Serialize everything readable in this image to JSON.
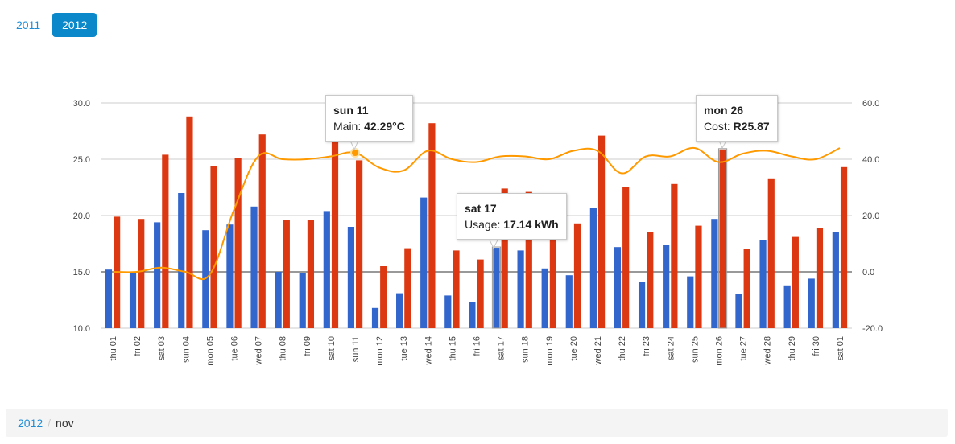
{
  "years": {
    "items": [
      {
        "label": "2011",
        "active": false
      },
      {
        "label": "2012",
        "active": true
      }
    ]
  },
  "breadcrumb": {
    "year": "2012",
    "separator": "/",
    "current": "nov"
  },
  "chart_data": {
    "type": "bar",
    "categories": [
      "thu 01",
      "fri 02",
      "sat 03",
      "sun 04",
      "mon 05",
      "tue 06",
      "wed 07",
      "thu 08",
      "fri 09",
      "sat 10",
      "sun 11",
      "mon 12",
      "tue 13",
      "wed 14",
      "thu 15",
      "fri 16",
      "sat 17",
      "sun 18",
      "mon 19",
      "tue 20",
      "wed 21",
      "thu 22",
      "fri 23",
      "sat 24",
      "sun 25",
      "mon 26",
      "tue 27",
      "wed 28",
      "thu 29",
      "fri 30",
      "sat 01"
    ],
    "left_axis": {
      "ylim": [
        10.0,
        30.0
      ],
      "ticks": [
        "10.0",
        "15.0",
        "20.0",
        "25.0",
        "30.0"
      ]
    },
    "right_axis": {
      "ylim": [
        -20.0,
        60.0
      ],
      "ticks": [
        "-20.0",
        "0.0",
        "20.0",
        "40.0",
        "60.0"
      ]
    },
    "grid": true,
    "series": [
      {
        "values": [
          15.2,
          15.0,
          19.4,
          22.0,
          18.7,
          19.2,
          20.8,
          15.0,
          14.9,
          20.4,
          19.0,
          11.8,
          13.1,
          21.6,
          12.9,
          12.3,
          17.14,
          16.9,
          15.3,
          14.7,
          20.7,
          17.2,
          14.1,
          17.4,
          14.6,
          19.7,
          13.0,
          17.8,
          13.8,
          14.4,
          18.5
        ],
        "color": "#3366cc",
        "axis": "left",
        "type": "bar"
      },
      {
        "values": [
          19.9,
          19.7,
          25.4,
          28.8,
          24.4,
          25.1,
          27.2,
          19.6,
          19.6,
          26.6,
          24.9,
          15.5,
          17.1,
          28.2,
          16.9,
          16.1,
          22.4,
          22.1,
          18.9,
          19.3,
          27.1,
          22.5,
          18.5,
          22.8,
          19.1,
          25.87,
          17.0,
          23.3,
          18.1,
          18.9,
          24.3
        ],
        "color": "#dc3912",
        "axis": "left",
        "type": "bar"
      },
      {
        "values": [
          0,
          0,
          1.5,
          0,
          -1,
          22,
          41,
          40,
          40,
          41,
          42.29,
          37,
          36,
          43,
          40,
          39,
          41,
          41,
          40,
          43,
          43,
          35,
          41,
          41,
          44,
          39,
          42,
          43,
          41,
          40,
          44
        ],
        "color": "#ff9900",
        "axis": "right",
        "type": "line"
      }
    ],
    "tooltips": [
      {
        "index": 10,
        "title": "sun 11",
        "label": "Main:",
        "value": "42.29°C"
      },
      {
        "index": 16,
        "title": "sat 17",
        "label": "Usage:",
        "value": "17.14 kWh"
      },
      {
        "index": 25,
        "title": "mon 26",
        "label": "Cost:",
        "value": "R25.87"
      }
    ]
  }
}
